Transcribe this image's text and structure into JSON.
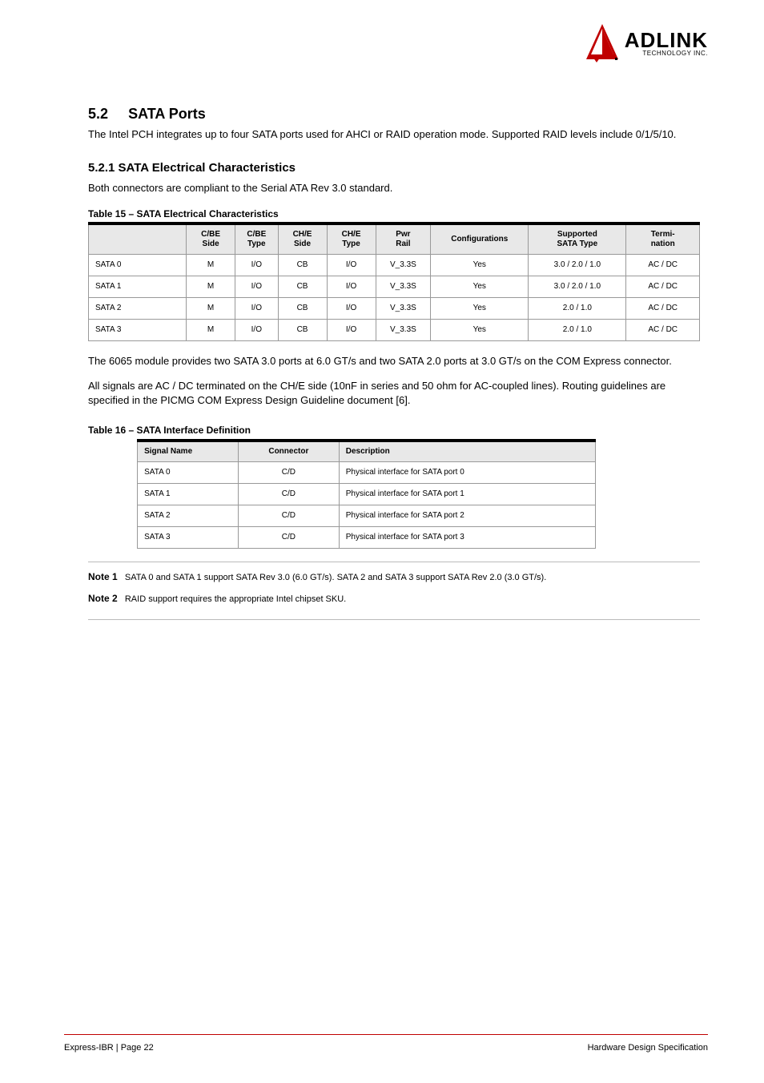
{
  "logo": {
    "main": "ADLINK",
    "sub": "TECHNOLOGY INC."
  },
  "section": {
    "number": "5.2",
    "title": "SATA Ports",
    "intro": "The Intel PCH integrates up to four SATA ports used for AHCI or RAID operation mode. Supported RAID levels include 0/1/5/10.",
    "h3": "5.2.1 SATA Electrical Characteristics",
    "para3": "Both connectors are compliant to the Serial ATA Rev 3.0 standard.",
    "t1title": "Table 15 – SATA Electrical Characteristics",
    "t2title": "Table 16 – SATA Interface Definition",
    "table1": {
      "headers": [
        "",
        "C/BE\nSide",
        "C/BE\nType",
        "CH/E\nSide",
        "CH/E\nType",
        "Pwr\nRail",
        "Configurations",
        "Supported\nSATA Type",
        "Termi-\nnation"
      ],
      "rows": [
        [
          "SATA 0",
          "M",
          "I/O",
          "CB",
          "I/O",
          "V_3.3S",
          "Yes",
          "3.0 / 2.0 / 1.0",
          "AC / DC"
        ],
        [
          "SATA 1",
          "M",
          "I/O",
          "CB",
          "I/O",
          "V_3.3S",
          "Yes",
          "3.0 / 2.0 / 1.0",
          "AC / DC"
        ],
        [
          "SATA 2",
          "M",
          "I/O",
          "CB",
          "I/O",
          "V_3.3S",
          "Yes",
          "2.0 / 1.0",
          "AC / DC"
        ],
        [
          "SATA 3",
          "M",
          "I/O",
          "CB",
          "I/O",
          "V_3.3S",
          "Yes",
          "2.0 / 1.0",
          "AC / DC"
        ]
      ]
    },
    "postTable1": [
      "The 6065 module provides two SATA 3.0 ports at 6.0 GT/s and two SATA 2.0 ports at 3.0 GT/s on the COM Express connector.",
      "All signals are AC / DC terminated on the CH/E side (10nF in series and 50 ohm for AC-coupled lines). Routing guidelines are specified in the PICMG COM Express Design Guideline document [6]."
    ],
    "table2": {
      "headers": [
        "Signal Name",
        "Connector",
        "Description"
      ],
      "rows": [
        [
          "SATA 0",
          "C/D",
          "Physical interface for SATA port 0"
        ],
        [
          "SATA 1",
          "C/D",
          "Physical interface for SATA port 1"
        ],
        [
          "SATA 2",
          "C/D",
          "Physical interface for SATA port 2"
        ],
        [
          "SATA 3",
          "C/D",
          "Physical interface for SATA port 3"
        ]
      ]
    },
    "notes": [
      {
        "label": "Note 1",
        "text": "SATA 0 and SATA 1 support SATA Rev 3.0 (6.0 GT/s). SATA 2 and SATA 3 support SATA Rev 2.0 (3.0 GT/s)."
      },
      {
        "label": "Note 2",
        "text": "RAID support requires the appropriate Intel chipset SKU."
      }
    ]
  },
  "footer": {
    "left": "Express-IBR | Page 22",
    "right": "Hardware Design Specification"
  }
}
